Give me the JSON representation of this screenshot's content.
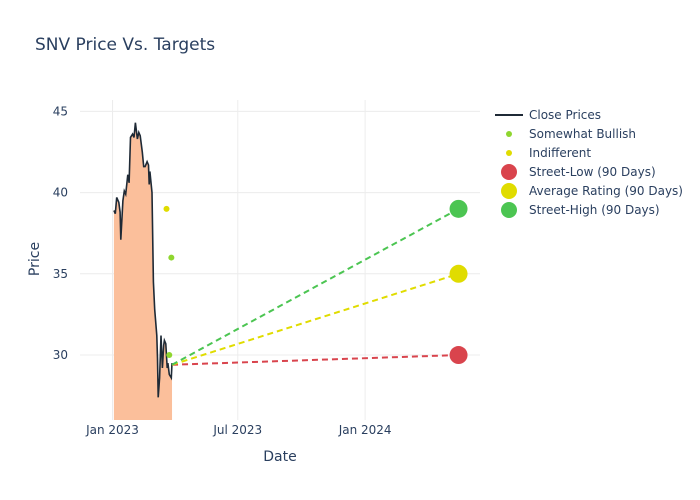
{
  "chart_data": {
    "type": "line",
    "title": "SNV Price Vs. Targets",
    "xlabel": "Date",
    "ylabel": "Price",
    "xlim": [
      "2022-11-15",
      "2024-06-15"
    ],
    "ylim": [
      26,
      45.7
    ],
    "x_ticks": [
      "2023-01-01",
      "2023-07-01",
      "2024-01-01"
    ],
    "x_tick_labels": [
      "Jan 2023",
      "Jul 2023",
      "Jan 2024"
    ],
    "y_ticks": [
      30,
      35,
      40,
      45
    ],
    "grid": true,
    "legend_position": "right",
    "series": [
      {
        "name": "Close Prices",
        "kind": "line-with-fill",
        "color": "#1f2a36",
        "fill_color": "#fbbf9b",
        "points": [
          [
            "2023-01-03",
            38.9
          ],
          [
            "2023-01-05",
            38.7
          ],
          [
            "2023-01-07",
            39.7
          ],
          [
            "2023-01-10",
            39.4
          ],
          [
            "2023-01-12",
            38.8
          ],
          [
            "2023-01-13",
            37.1
          ],
          [
            "2023-01-16",
            39.5
          ],
          [
            "2023-01-18",
            40.1
          ],
          [
            "2023-01-20",
            39.9
          ],
          [
            "2023-01-23",
            41.1
          ],
          [
            "2023-01-25",
            40.6
          ],
          [
            "2023-01-27",
            43.4
          ],
          [
            "2023-01-30",
            43.6
          ],
          [
            "2023-02-01",
            43.4
          ],
          [
            "2023-02-03",
            44.3
          ],
          [
            "2023-02-06",
            43.3
          ],
          [
            "2023-02-08",
            43.7
          ],
          [
            "2023-02-10",
            43.5
          ],
          [
            "2023-02-13",
            42.5
          ],
          [
            "2023-02-15",
            41.6
          ],
          [
            "2023-02-17",
            41.6
          ],
          [
            "2023-02-20",
            41.9
          ],
          [
            "2023-02-22",
            41.7
          ],
          [
            "2023-02-23",
            40.5
          ],
          [
            "2023-02-24",
            41.3
          ],
          [
            "2023-02-27",
            40.0
          ],
          [
            "2023-03-01",
            34.5
          ],
          [
            "2023-03-03",
            32.8
          ],
          [
            "2023-03-06",
            31.2
          ],
          [
            "2023-03-07",
            29.8
          ],
          [
            "2023-03-08",
            27.4
          ],
          [
            "2023-03-10",
            28.6
          ],
          [
            "2023-03-12",
            31.2
          ],
          [
            "2023-03-14",
            29.2
          ],
          [
            "2023-03-16",
            30.6
          ],
          [
            "2023-03-17",
            30.9
          ],
          [
            "2023-03-19",
            30.7
          ],
          [
            "2023-03-21",
            29.2
          ],
          [
            "2023-03-22",
            29.5
          ],
          [
            "2023-03-24",
            28.8
          ],
          [
            "2023-03-27",
            28.6
          ],
          [
            "2023-03-28",
            29.5
          ]
        ]
      },
      {
        "name": "Somewhat Bullish",
        "kind": "markers",
        "color": "#8fd62f",
        "points": [
          [
            "2023-03-27",
            36.0
          ],
          [
            "2023-03-24",
            30.0
          ]
        ]
      },
      {
        "name": "Indifferent",
        "kind": "markers",
        "color": "#e0dc00",
        "points": [
          [
            "2023-03-20",
            39.0
          ]
        ]
      },
      {
        "name": "Street-Low (90 Days)",
        "kind": "target",
        "color": "#d9444d",
        "start": [
          "2023-03-28",
          29.4
        ],
        "end": [
          "2024-05-15",
          30.0
        ]
      },
      {
        "name": "Average Rating (90 Days)",
        "kind": "target",
        "color": "#e0dc00",
        "start": [
          "2023-03-28",
          29.4
        ],
        "end": [
          "2024-05-15",
          35.0
        ]
      },
      {
        "name": "Street-High (90 Days)",
        "kind": "target",
        "color": "#4cc552",
        "start": [
          "2023-03-28",
          29.4
        ],
        "end": [
          "2024-05-15",
          39.0
        ]
      }
    ]
  }
}
